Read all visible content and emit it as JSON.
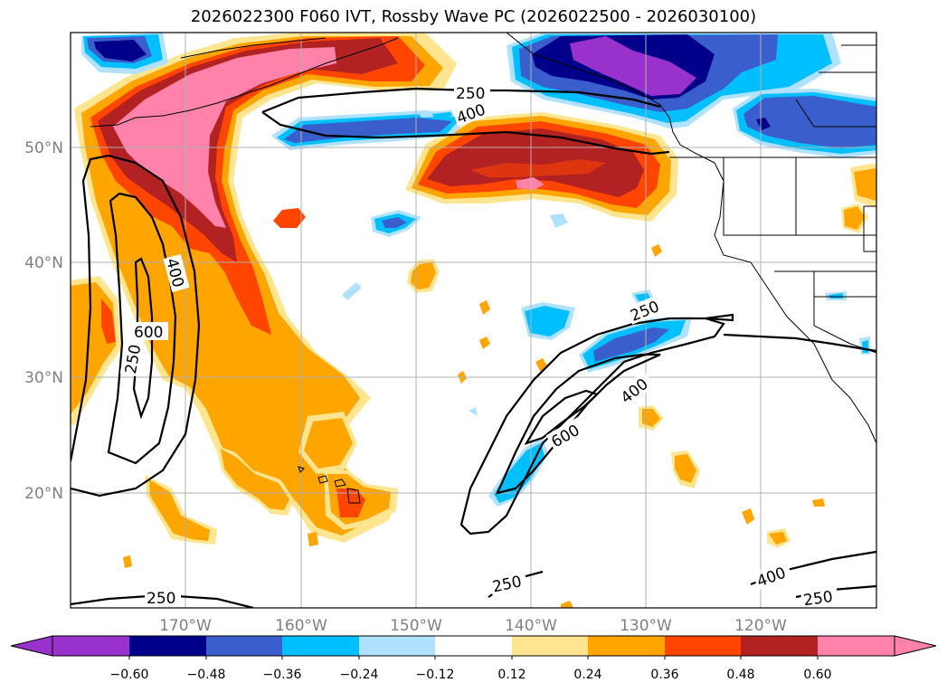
{
  "title": "2026022300 F060 IVT, Rossby Wave PC (2026022500 - 2026030100)",
  "map": {
    "lat_labels": [
      "50°N",
      "40°N",
      "30°N",
      "20°N"
    ],
    "lon_labels": [
      "170°W",
      "160°W",
      "150°W",
      "140°W",
      "130°W",
      "120°W"
    ],
    "contour_labels": [
      "250",
      "400",
      "400",
      "600",
      "250",
      "250",
      "400",
      "600",
      "250",
      "250",
      "400",
      "250"
    ],
    "gridlines": true
  },
  "colorbar": {
    "ticks": [
      "−0.60",
      "−0.48",
      "−0.36",
      "−0.24",
      "−0.12",
      "0.12",
      "0.24",
      "0.36",
      "0.48",
      "0.60"
    ],
    "colors": [
      "#9932CC",
      "#00008B",
      "#3A5FCD",
      "#00BFFF",
      "#B0E2FF",
      "#FFFFFF",
      "#FFE58F",
      "#FFA500",
      "#FF4500",
      "#B22222",
      "#FF82AB",
      "#FF82AB"
    ],
    "extend": "both"
  }
}
